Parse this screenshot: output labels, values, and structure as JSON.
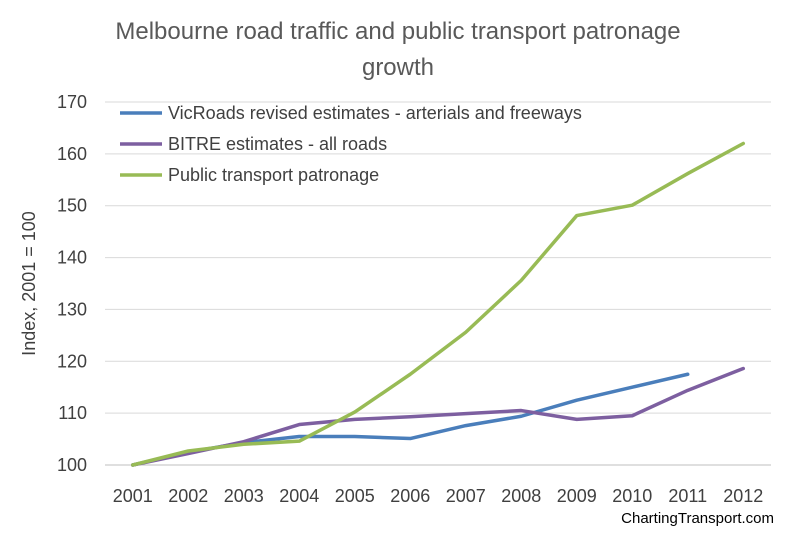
{
  "chart_data": {
    "type": "line",
    "title_lines": [
      "Melbourne road traffic and public transport patronage",
      "growth"
    ],
    "xlabel": "",
    "ylabel": "Index, 2001 = 100",
    "x": [
      "2001",
      "2002",
      "2003",
      "2004",
      "2005",
      "2006",
      "2007",
      "2008",
      "2009",
      "2010",
      "2011",
      "2012"
    ],
    "ylim": [
      100,
      170
    ],
    "yticks": [
      "100",
      "110",
      "120",
      "130",
      "140",
      "150",
      "160",
      "170"
    ],
    "grid": true,
    "legend_position": "top-left",
    "series": [
      {
        "name": "VicRoads revised estimates - arterials and freeways",
        "color": "#4a7ebb",
        "values": [
          100,
          102.5,
          104.3,
          105.5,
          105.5,
          105.1,
          107.6,
          109.4,
          112.5,
          115.0,
          117.5,
          null
        ]
      },
      {
        "name": "BITRE estimates - all roads",
        "color": "#7d5fa0",
        "values": [
          100,
          102.2,
          104.5,
          107.8,
          108.8,
          109.3,
          109.9,
          110.5,
          108.8,
          109.5,
          114.4,
          118.6
        ]
      },
      {
        "name": "Public transport patronage",
        "color": "#98bb55",
        "values": [
          100,
          102.7,
          104.0,
          104.6,
          110.2,
          117.5,
          125.6,
          135.6,
          148.1,
          150.1,
          156.2,
          162.0
        ]
      }
    ]
  },
  "footer": {
    "credit": "ChartingTransport.com"
  }
}
